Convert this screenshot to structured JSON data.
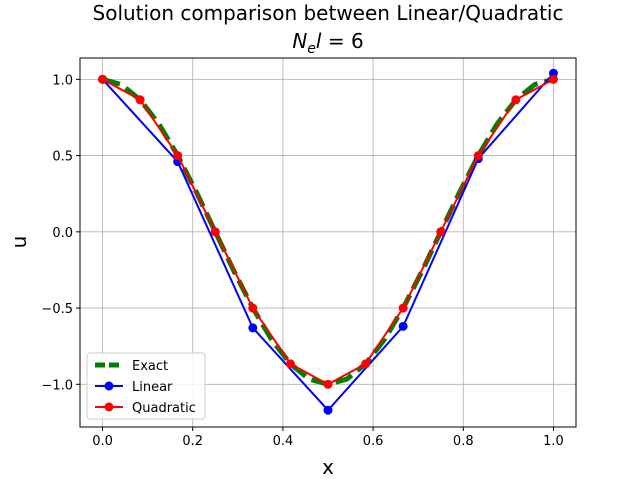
{
  "chart_data": {
    "type": "line",
    "title": "Solution comparison between Linear/Quadratic",
    "subtitle": {
      "base": "N",
      "sub": "e",
      "rest": "l",
      "value": " = 6"
    },
    "xlabel": "x",
    "ylabel": "u",
    "xlim": [
      -0.05,
      1.05
    ],
    "ylim": [
      -1.28,
      1.14
    ],
    "xticks": [
      0.0,
      0.2,
      0.4,
      0.6,
      0.8,
      1.0
    ],
    "xtick_labels": [
      "0.0",
      "0.2",
      "0.4",
      "0.6",
      "0.8",
      "1.0"
    ],
    "yticks": [
      -1.0,
      -0.5,
      0.0,
      0.5,
      1.0
    ],
    "ytick_labels": [
      "−1.0",
      "−0.5",
      "0.0",
      "0.5",
      "1.0"
    ],
    "grid": true,
    "legend_position": "lower-left",
    "series": [
      {
        "name": "Exact",
        "color": "#008000",
        "style": "dashed",
        "markers": false,
        "x": [
          0.0,
          0.04167,
          0.08333,
          0.125,
          0.16667,
          0.20833,
          0.25,
          0.29167,
          0.33333,
          0.375,
          0.41667,
          0.45833,
          0.5,
          0.54167,
          0.58333,
          0.625,
          0.66667,
          0.70833,
          0.75,
          0.79167,
          0.83333,
          0.875,
          0.91667,
          0.95833,
          1.0
        ],
        "y": [
          1.0,
          0.966,
          0.866,
          0.707,
          0.5,
          0.259,
          0.0,
          -0.259,
          -0.5,
          -0.707,
          -0.866,
          -0.966,
          -1.0,
          -0.966,
          -0.866,
          -0.707,
          -0.5,
          -0.259,
          0.0,
          0.259,
          0.5,
          0.707,
          0.866,
          0.966,
          1.0
        ]
      },
      {
        "name": "Linear",
        "color": "#0000ff",
        "style": "solid",
        "markers": true,
        "x": [
          0.0,
          0.16667,
          0.33333,
          0.5,
          0.66667,
          0.83333,
          1.0
        ],
        "y": [
          1.0,
          0.46,
          -0.63,
          -1.17,
          -0.62,
          0.48,
          1.04
        ]
      },
      {
        "name": "Quadratic",
        "color": "#ff0000",
        "style": "solid",
        "markers": true,
        "x": [
          0.0,
          0.08333,
          0.16667,
          0.25,
          0.33333,
          0.41667,
          0.5,
          0.58333,
          0.66667,
          0.75,
          0.83333,
          0.91667,
          1.0
        ],
        "y": [
          1.0,
          0.866,
          0.5,
          0.0,
          -0.5,
          -0.866,
          -1.0,
          -0.866,
          -0.5,
          0.0,
          0.5,
          0.866,
          1.0
        ]
      }
    ]
  }
}
